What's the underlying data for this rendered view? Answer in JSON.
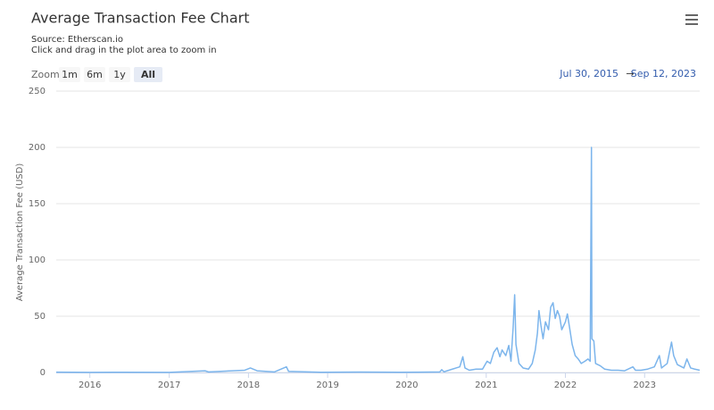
{
  "chart_data": {
    "type": "line",
    "title": "Average Transaction Fee Chart",
    "subtitle": [
      "Source: Etherscan.io",
      "Click and drag in the plot area to zoom in"
    ],
    "zoom_label": "Zoom",
    "zoom_buttons": [
      "1m",
      "6m",
      "1y",
      "All"
    ],
    "zoom_selected": 3,
    "range_from": "Jul 30, 2015",
    "range_separator": "→",
    "range_to": "Sep 12, 2023",
    "y_label": "Average Transaction Fee (USD)",
    "xlim": [
      "2015-07-30",
      "2023-09-12"
    ],
    "xticks": [
      {
        "value": "2016-01-01",
        "label": "2016"
      },
      {
        "value": "2017-01-01",
        "label": "2017"
      },
      {
        "value": "2018-01-01",
        "label": "2018"
      },
      {
        "value": "2019-01-01",
        "label": "2019"
      },
      {
        "value": "2020-01-01",
        "label": "2020"
      },
      {
        "value": "2021-01-01",
        "label": "2021"
      },
      {
        "value": "2022-01-01",
        "label": "2022"
      },
      {
        "value": "2023-01-01",
        "label": "2023"
      }
    ],
    "ylim": [
      0,
      250
    ],
    "yticks": [
      0,
      50,
      100,
      150,
      200,
      250
    ],
    "grid": true,
    "series": [
      {
        "name": "Average Transaction Fee",
        "color": "#7cb5ec",
        "x": [
          "2015-07-30",
          "2016-01-01",
          "2016-06-01",
          "2017-01-01",
          "2017-06-15",
          "2017-07-01",
          "2017-12-15",
          "2018-01-10",
          "2018-02-10",
          "2018-05-01",
          "2018-06-25",
          "2018-07-05",
          "2018-12-01",
          "2019-06-01",
          "2019-12-01",
          "2020-03-01",
          "2020-06-01",
          "2020-06-10",
          "2020-06-20",
          "2020-08-15",
          "2020-09-01",
          "2020-09-15",
          "2020-09-25",
          "2020-10-15",
          "2020-11-15",
          "2020-12-15",
          "2021-01-05",
          "2021-01-20",
          "2021-02-05",
          "2021-02-20",
          "2021-03-05",
          "2021-03-15",
          "2021-04-01",
          "2021-04-15",
          "2021-04-25",
          "2021-05-05",
          "2021-05-12",
          "2021-05-18",
          "2021-06-01",
          "2021-06-20",
          "2021-07-15",
          "2021-08-01",
          "2021-08-15",
          "2021-08-25",
          "2021-09-01",
          "2021-09-10",
          "2021-09-20",
          "2021-10-01",
          "2021-10-15",
          "2021-10-25",
          "2021-11-05",
          "2021-11-15",
          "2021-11-25",
          "2021-12-05",
          "2021-12-15",
          "2022-01-01",
          "2022-01-10",
          "2022-01-20",
          "2022-02-01",
          "2022-02-15",
          "2022-03-01",
          "2022-03-15",
          "2022-04-01",
          "2022-04-15",
          "2022-04-25",
          "2022-05-01",
          "2022-05-03",
          "2022-05-12",
          "2022-05-20",
          "2022-06-10",
          "2022-07-01",
          "2022-08-01",
          "2022-09-01",
          "2022-10-01",
          "2022-11-08",
          "2022-11-20",
          "2022-12-15",
          "2023-01-15",
          "2023-02-15",
          "2023-03-10",
          "2023-03-20",
          "2023-04-15",
          "2023-05-05",
          "2023-05-15",
          "2023-06-01",
          "2023-07-01",
          "2023-07-15",
          "2023-08-01",
          "2023-08-20",
          "2023-09-12"
        ],
        "values": [
          0.3,
          0.1,
          0.2,
          0.1,
          1.5,
          0.5,
          2,
          4,
          1.5,
          0.5,
          5,
          1,
          0.2,
          0.4,
          0.2,
          0.3,
          0.5,
          2.5,
          0.6,
          4,
          5,
          14,
          4,
          2,
          3,
          3,
          10,
          8,
          18,
          22,
          14,
          20,
          15,
          24,
          10,
          40,
          69,
          25,
          8,
          4,
          3,
          8,
          20,
          35,
          55,
          42,
          30,
          45,
          38,
          58,
          62,
          48,
          55,
          50,
          38,
          45,
          52,
          40,
          25,
          15,
          12,
          8,
          10,
          12,
          10,
          200,
          30,
          28,
          8,
          6,
          3,
          2,
          2,
          1.5,
          5,
          2,
          2,
          3,
          5,
          15,
          4,
          8,
          27,
          15,
          7,
          4,
          12,
          4,
          3,
          2
        ]
      }
    ]
  }
}
